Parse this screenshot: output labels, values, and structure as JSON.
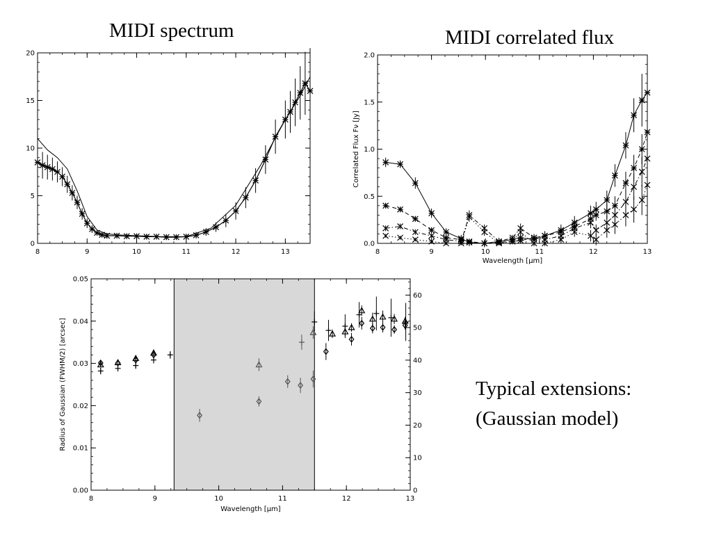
{
  "titles": {
    "left": "MIDI spectrum",
    "right": "MIDI correlated flux"
  },
  "note": {
    "line1": "Typical extensions:",
    "line2": "(Gaussian model)"
  },
  "chart_data": [
    {
      "id": "spectrum",
      "type": "line",
      "title": "MIDI spectrum",
      "xlim": [
        8,
        13.5
      ],
      "ylim": [
        0,
        20
      ],
      "xticks": [
        8,
        9,
        10,
        11,
        12,
        13
      ],
      "yticks": [
        0,
        5,
        10,
        15,
        20
      ],
      "series": [
        {
          "style": "smooth-line",
          "x": [
            8.0,
            8.2,
            8.4,
            8.6,
            8.8,
            9.0,
            9.2,
            9.4,
            9.6,
            10.0,
            10.5,
            11.0,
            11.5,
            12.0,
            12.5,
            13.0,
            13.3,
            13.5
          ],
          "y": [
            11.0,
            9.8,
            9.0,
            7.8,
            5.5,
            2.8,
            1.4,
            1.0,
            0.9,
            0.8,
            0.7,
            0.7,
            1.6,
            4.0,
            8.2,
            13.0,
            15.5,
            17.5
          ]
        },
        {
          "style": "points-with-errorbars",
          "x": [
            8.0,
            8.1,
            8.2,
            8.3,
            8.4,
            8.5,
            8.6,
            8.7,
            8.8,
            8.9,
            9.0,
            9.1,
            9.2,
            9.3,
            9.4,
            9.6,
            9.8,
            10.0,
            10.2,
            10.4,
            10.6,
            10.8,
            11.0,
            11.2,
            11.4,
            11.6,
            11.8,
            12.0,
            12.2,
            12.4,
            12.6,
            12.8,
            13.0,
            13.1,
            13.2,
            13.3,
            13.4,
            13.5
          ],
          "y": [
            8.5,
            8.2,
            8.0,
            7.8,
            7.5,
            7.0,
            6.2,
            5.3,
            4.3,
            3.1,
            2.1,
            1.5,
            1.1,
            0.9,
            0.8,
            0.8,
            0.75,
            0.75,
            0.7,
            0.7,
            0.65,
            0.65,
            0.7,
            0.85,
            1.2,
            1.7,
            2.4,
            3.4,
            4.8,
            6.6,
            8.8,
            11.2,
            13.0,
            13.8,
            14.8,
            15.8,
            16.8,
            16.0
          ],
          "err": [
            1.5,
            1.4,
            1.3,
            1.2,
            1.1,
            1.0,
            0.9,
            0.8,
            0.7,
            0.6,
            0.5,
            0.4,
            0.3,
            0.3,
            0.3,
            0.3,
            0.3,
            0.3,
            0.3,
            0.3,
            0.3,
            0.3,
            0.3,
            0.35,
            0.4,
            0.5,
            0.7,
            0.9,
            1.1,
            1.3,
            1.5,
            1.8,
            2.0,
            2.2,
            2.5,
            2.8,
            3.3,
            4.5
          ]
        }
      ]
    },
    {
      "id": "corrflux",
      "type": "line",
      "title": "MIDI correlated flux",
      "xlabel": "Wavelength [μm]",
      "ylabel": "Correlated Flux Fν [Jy]",
      "xlim": [
        8,
        13
      ],
      "ylim": [
        0,
        2
      ],
      "xticks": [
        8,
        9,
        10,
        11,
        12,
        13
      ],
      "yticks": [
        0.0,
        0.5,
        1.0,
        1.5,
        2.0
      ],
      "x": [
        8.15,
        8.42,
        8.7,
        9.0,
        9.27,
        9.55,
        9.7,
        9.98,
        10.25,
        10.5,
        10.65,
        10.9,
        11.1,
        11.4,
        11.65,
        11.95,
        12.05,
        12.25,
        12.4,
        12.6,
        12.75,
        12.9,
        13.0
      ],
      "series": [
        {
          "dash": "solid",
          "marker": "asterisk",
          "y": [
            0.86,
            0.84,
            0.64,
            0.32,
            0.12,
            0.05,
            0.01,
            0.0,
            0.02,
            0.04,
            0.06,
            0.04,
            0.08,
            0.14,
            0.22,
            0.32,
            0.36,
            0.46,
            0.72,
            1.04,
            1.36,
            1.52,
            1.6
          ],
          "err": [
            0.05,
            0.04,
            0.06,
            0.05,
            0.04,
            0.04,
            0.04,
            0.04,
            0.04,
            0.04,
            0.04,
            0.05,
            0.05,
            0.06,
            0.07,
            0.08,
            0.08,
            0.1,
            0.12,
            0.14,
            0.18,
            0.28,
            0.22
          ]
        },
        {
          "dash": "dashed",
          "marker": "asterisk",
          "y": [
            0.4,
            0.36,
            0.26,
            0.14,
            0.06,
            0.04,
            0.02,
            0.0,
            0.01,
            0.02,
            0.03,
            0.06,
            0.08,
            0.12,
            0.18,
            0.26,
            0.3,
            0.34,
            0.4,
            0.64,
            0.8,
            1.0,
            1.18
          ],
          "err": [
            0.03,
            0.03,
            0.03,
            0.03,
            0.03,
            0.03,
            0.03,
            0.03,
            0.03,
            0.03,
            0.03,
            0.03,
            0.04,
            0.05,
            0.05,
            0.06,
            0.06,
            0.08,
            0.1,
            0.12,
            0.14,
            0.16,
            0.18
          ]
        },
        {
          "dash": "dashdot",
          "marker": "x",
          "y": [
            0.16,
            0.18,
            0.12,
            0.08,
            0.04,
            0.02,
            0.3,
            0.16,
            0.02,
            0.06,
            0.16,
            0.06,
            0.04,
            0.08,
            0.16,
            0.22,
            0.14,
            0.22,
            0.3,
            0.44,
            0.6,
            0.76,
            0.9
          ],
          "err": [
            0.03,
            0.03,
            0.03,
            0.03,
            0.03,
            0.03,
            0.05,
            0.04,
            0.03,
            0.03,
            0.05,
            0.04,
            0.04,
            0.05,
            0.05,
            0.06,
            0.06,
            0.08,
            0.1,
            0.12,
            0.14,
            0.16,
            0.18
          ]
        },
        {
          "dash": "dotted",
          "marker": "x",
          "y": [
            0.08,
            0.06,
            0.04,
            0.02,
            0.0,
            0.0,
            0.28,
            0.12,
            0.0,
            0.02,
            0.12,
            0.0,
            0.0,
            0.04,
            0.12,
            0.08,
            0.04,
            0.14,
            0.2,
            0.3,
            0.36,
            0.46,
            0.62
          ],
          "err": [
            0.02,
            0.02,
            0.02,
            0.02,
            0.02,
            0.02,
            0.05,
            0.04,
            0.02,
            0.02,
            0.04,
            0.03,
            0.03,
            0.04,
            0.05,
            0.06,
            0.06,
            0.08,
            0.1,
            0.12,
            0.14,
            0.16,
            0.18
          ]
        }
      ]
    },
    {
      "id": "gaussian",
      "type": "scatter",
      "xlabel": "Wavelength [μm]",
      "ylabel": "Radius of Gaussian (FWHM/2) [arcsec]",
      "xlim": [
        8,
        13
      ],
      "ylim": [
        0,
        0.05
      ],
      "y2lim": [
        0,
        65
      ],
      "xticks": [
        8,
        9,
        10,
        11,
        12,
        13
      ],
      "yticks": [
        0.0,
        0.01,
        0.02,
        0.03,
        0.04,
        0.05
      ],
      "y2ticks": [
        0,
        10,
        20,
        30,
        40,
        50,
        60
      ],
      "shaded_region": [
        9.3,
        11.5
      ],
      "series": [
        {
          "marker": "plus",
          "x": [
            8.15,
            8.42,
            8.7,
            8.98,
            9.24,
            11.3,
            11.5,
            11.72,
            11.98,
            12.2,
            12.47,
            12.7,
            12.93
          ],
          "y": [
            0.0282,
            0.0288,
            0.0295,
            0.0308,
            0.032,
            0.035,
            0.0398,
            0.0378,
            0.0388,
            0.0415,
            0.0418,
            0.0408,
            0.0398
          ],
          "err": [
            0.0008,
            0.0007,
            0.0008,
            0.0008,
            0.0009,
            0.0018,
            0.0025,
            0.0025,
            0.0028,
            0.003,
            0.004,
            0.0045,
            0.0045
          ]
        },
        {
          "marker": "triangle",
          "x": [
            8.15,
            8.42,
            8.7,
            8.98,
            10.63,
            11.48,
            11.78,
            11.98,
            12.08,
            12.24,
            12.41,
            12.57,
            12.75,
            12.92
          ],
          "y": [
            0.0297,
            0.0302,
            0.0312,
            0.0325,
            0.0297,
            0.0373,
            0.037,
            0.0375,
            0.0385,
            0.0425,
            0.0405,
            0.041,
            0.0405,
            0.04
          ],
          "err": [
            0.0005,
            0.0005,
            0.0005,
            0.0005,
            0.0015,
            0.0015,
            0.001,
            0.001,
            0.001,
            0.0012,
            0.0015,
            0.0015,
            0.0012,
            0.001
          ]
        },
        {
          "marker": "diamond",
          "x": [
            8.15,
            8.42,
            8.7,
            8.98,
            9.7,
            10.63,
            11.08,
            11.28,
            11.48,
            11.68,
            12.08,
            12.24,
            12.41,
            12.57,
            12.75,
            12.92
          ],
          "y": [
            0.0301,
            0.0301,
            0.0308,
            0.032,
            0.0177,
            0.021,
            0.0257,
            0.0248,
            0.0263,
            0.0328,
            0.0357,
            0.0395,
            0.0383,
            0.0385,
            0.038,
            0.039
          ],
          "err": [
            0.0005,
            0.0005,
            0.0005,
            0.0005,
            0.0015,
            0.0012,
            0.0015,
            0.0018,
            0.002,
            0.002,
            0.0015,
            0.0015,
            0.0012,
            0.0012,
            0.001,
            0.001
          ]
        }
      ]
    }
  ]
}
